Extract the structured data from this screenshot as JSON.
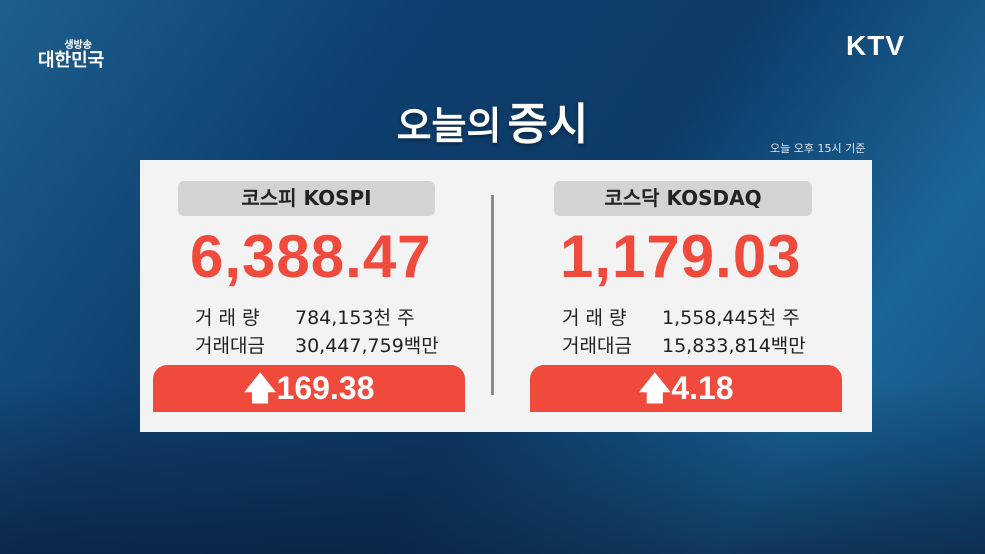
{
  "channel": {
    "program_small": "생방송",
    "program_big": "대한민국",
    "logo": "KTV"
  },
  "title": {
    "part1": "오늘의",
    "part2": "증시"
  },
  "timestamp": "오늘 오후 15시 기준",
  "kospi": {
    "label": "코스피 KOSPI",
    "value": "6,388.47",
    "volume_label": "거 래 량",
    "volume": "784,153천 주",
    "amount_label": "거래대금",
    "amount": "30,447,759백만",
    "change": "169.38",
    "direction": "up"
  },
  "kosdaq": {
    "label": "코스닥 KOSDAQ",
    "value": "1,179.03",
    "volume_label": "거 래 량",
    "volume": "1,558,445천 주",
    "amount_label": "거래대금",
    "amount": "15,833,814백만",
    "change": "4.18",
    "direction": "up"
  },
  "colors": {
    "accent": "#ef4a3c",
    "card": "#f3f3f3"
  }
}
